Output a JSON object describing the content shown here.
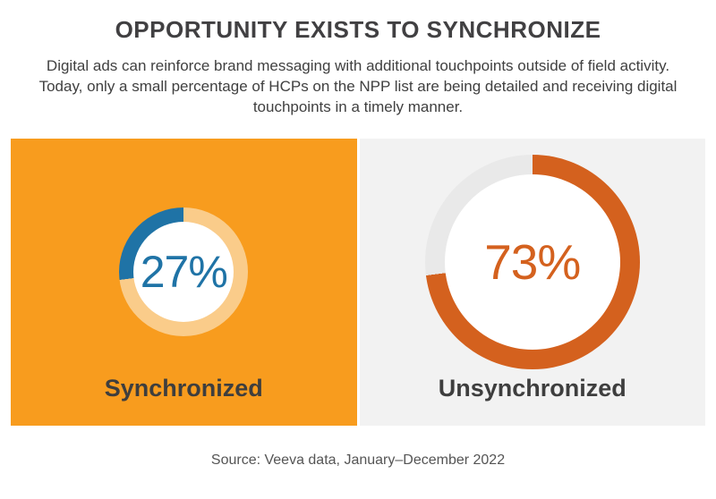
{
  "header": {
    "title": "OPPORTUNITY EXISTS TO SYNCHRONIZE",
    "subtitle_lines": [
      "Digital ads can reinforce brand messaging with additional touchpoints outside of field activity.",
      "Today, only a small percentage of HCPs on the NPP list are being detailed and receiving digital",
      "touchpoints in a timely manner."
    ]
  },
  "chart_data": [
    {
      "type": "pie",
      "subtype": "donut",
      "title": "Synchronized",
      "categories": [
        "Synchronized",
        "Not synchronized"
      ],
      "values": [
        27,
        73
      ],
      "value_pct": 27,
      "center_label": "27%",
      "direction": "ccw",
      "arc_color": "#1F73A6",
      "track_color": "#FACC8A",
      "panel_background": "#F89C1E",
      "label_color": "#3E3E3E"
    },
    {
      "type": "pie",
      "subtype": "donut",
      "title": "Unsynchronized",
      "categories": [
        "Unsynchronized",
        "Synchronized"
      ],
      "values": [
        73,
        27
      ],
      "value_pct": 73,
      "center_label": "73%",
      "direction": "cw",
      "arc_color": "#D4611E",
      "track_color": "#E9E9E9",
      "panel_background": "#F2F2F2",
      "label_color": "#3E3E3E"
    }
  ],
  "footer": {
    "source": "Source: Veeva data, January–December 2022"
  }
}
